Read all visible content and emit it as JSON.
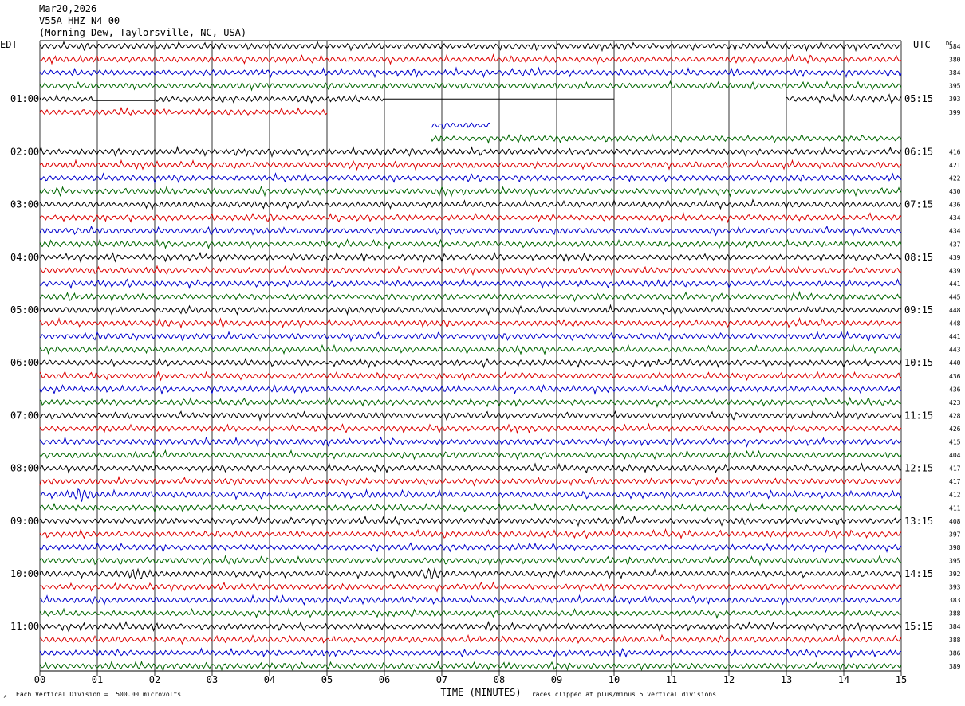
{
  "header": {
    "date": "Mar20,2026",
    "station": "V55A HHZ N4 00",
    "location": "(Morning Dew, Taylorsville, NC, USA)"
  },
  "left_tz": "EDT",
  "right_tz": "UTC",
  "dc_label": "DC",
  "colors": {
    "trace_cycle": [
      "#000000",
      "#dd0000",
      "#0000cc",
      "#006600"
    ],
    "grid": "#000000"
  },
  "chart_data": {
    "type": "line",
    "title": "V55A HHZ N4 00",
    "xlabel": "TIME (MINUTES)",
    "x_ticks": [
      "00",
      "01",
      "02",
      "03",
      "04",
      "05",
      "06",
      "07",
      "08",
      "09",
      "10",
      "11",
      "12",
      "13",
      "14",
      "15"
    ],
    "xlim": [
      0,
      15
    ],
    "rows": 48,
    "left_hour_labels": [
      {
        "row": 4,
        "label": "01:00"
      },
      {
        "row": 8,
        "label": "02:00"
      },
      {
        "row": 12,
        "label": "03:00"
      },
      {
        "row": 16,
        "label": "04:00"
      },
      {
        "row": 20,
        "label": "05:00"
      },
      {
        "row": 24,
        "label": "06:00"
      },
      {
        "row": 28,
        "label": "07:00"
      },
      {
        "row": 32,
        "label": "08:00"
      },
      {
        "row": 36,
        "label": "09:00"
      },
      {
        "row": 40,
        "label": "10:00"
      },
      {
        "row": 44,
        "label": "11:00"
      }
    ],
    "right_hour_labels": [
      {
        "row": 4,
        "label": "05:15"
      },
      {
        "row": 8,
        "label": "06:15"
      },
      {
        "row": 12,
        "label": "07:15"
      },
      {
        "row": 16,
        "label": "08:15"
      },
      {
        "row": 20,
        "label": "09:15"
      },
      {
        "row": 24,
        "label": "10:15"
      },
      {
        "row": 28,
        "label": "11:15"
      },
      {
        "row": 32,
        "label": "12:15"
      },
      {
        "row": 36,
        "label": "13:15"
      },
      {
        "row": 40,
        "label": "14:15"
      },
      {
        "row": 44,
        "label": "15:15"
      }
    ],
    "dc_offsets": [
      "384",
      "380",
      "384",
      "395",
      "393",
      "399",
      "",
      "",
      "416",
      "421",
      "422",
      "430",
      "436",
      "434",
      "434",
      "437",
      "439",
      "439",
      "441",
      "445",
      "448",
      "448",
      "441",
      "443",
      "440",
      "436",
      "436",
      "423",
      "428",
      "426",
      "415",
      "404",
      "417",
      "417",
      "412",
      "411",
      "408",
      "397",
      "398",
      "395",
      "392",
      "393",
      "383",
      "388",
      "384",
      "388",
      "386",
      "389"
    ],
    "gaps": [
      {
        "row": 4,
        "flat_from": 0.9,
        "flat_to": 2.0,
        "gap_from": 6.0,
        "gap_to": 10.0,
        "resume": 13.0
      },
      {
        "row": 5,
        "end": 5.0
      },
      {
        "row": 6,
        "start": 6.8,
        "end": 7.85
      },
      {
        "row": 7,
        "start": 6.8
      }
    ],
    "events": [
      {
        "row": 34,
        "minute": 0.7,
        "label": ""
      },
      {
        "row": 40,
        "minute": 1.7,
        "label": ""
      },
      {
        "row": 40,
        "minute": 6.8,
        "label": ""
      }
    ]
  },
  "footer": {
    "scale": "Each Vertical Division =  500.00 microvolts",
    "clip": "Traces clipped at plus/minus 5 vertical divisions"
  }
}
